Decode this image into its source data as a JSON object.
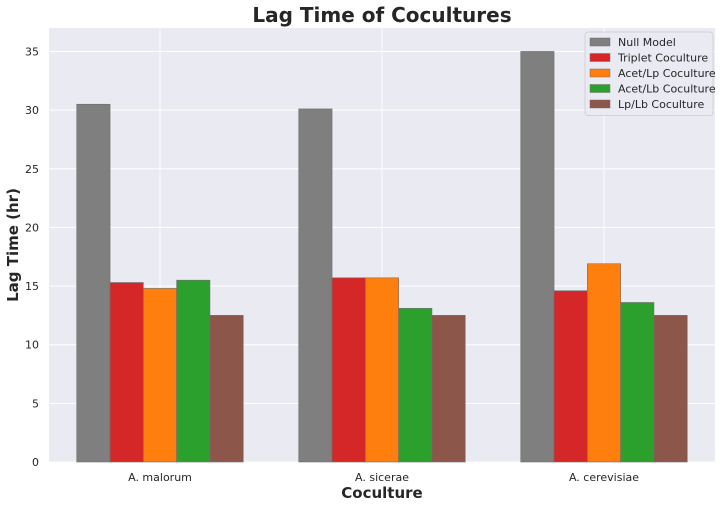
{
  "chart_data": {
    "type": "bar",
    "title": "Lag Time of Cocultures",
    "xlabel": "Coculture",
    "ylabel": "Lag Time (hr)",
    "categories": [
      "A. malorum",
      "A. sicerae",
      "A. cerevisiae"
    ],
    "ylim": [
      0,
      37
    ],
    "yticks": [
      0,
      5,
      10,
      15,
      20,
      25,
      30,
      35
    ],
    "grid": true,
    "legend_position": "top-right",
    "series": [
      {
        "name": "Null Model",
        "color": "#7f7f7f",
        "values": [
          30.5,
          30.1,
          35.0
        ]
      },
      {
        "name": "Triplet Coculture",
        "color": "#d62728",
        "values": [
          15.3,
          15.7,
          14.6
        ]
      },
      {
        "name": "Acet/Lp Coculture",
        "color": "#ff7f0e",
        "values": [
          14.8,
          15.7,
          16.9
        ]
      },
      {
        "name": "Acet/Lb Coculture",
        "color": "#2ca02c",
        "values": [
          15.5,
          13.1,
          13.6
        ]
      },
      {
        "name": "Lp/Lb Coculture",
        "color": "#8c564b",
        "values": [
          12.5,
          12.5,
          12.5
        ]
      }
    ]
  }
}
